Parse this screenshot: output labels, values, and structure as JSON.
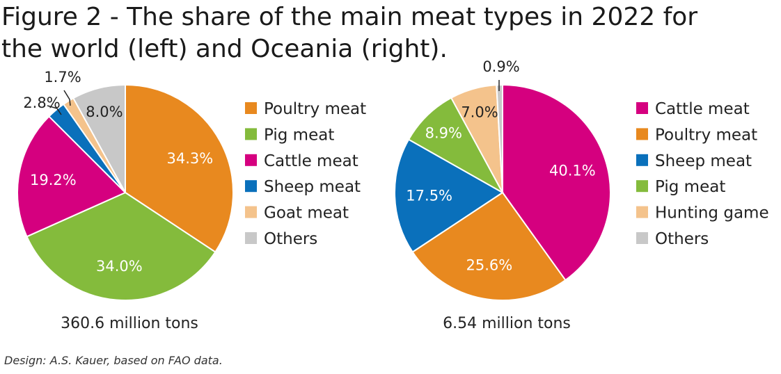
{
  "title_lines": [
    "Figure 2 - The share of the main meat types in 2022 for",
    "the world (left) and Oceania (right)."
  ],
  "credit": "Design: A.S. Kauer, based on FAO data.",
  "colors": {
    "poultry": "#e8891f",
    "pig": "#84bb3c",
    "cattle": "#d5007f",
    "sheep": "#0a70bb",
    "goat": "#f4c38c",
    "hunting": "#f4c38c",
    "others": "#c8c8c8"
  },
  "chart_data": [
    {
      "type": "pie",
      "title": "",
      "total_label": "360.6 million tons",
      "slices": [
        {
          "name": "Poultry meat",
          "value": 34.3,
          "label": "34.3%",
          "color": "#e8891f"
        },
        {
          "name": "Pig meat",
          "value": 34.0,
          "label": "34.0%",
          "color": "#84bb3c"
        },
        {
          "name": "Cattle meat",
          "value": 19.2,
          "label": "19.2%",
          "color": "#d5007f"
        },
        {
          "name": "Sheep meat",
          "value": 2.8,
          "label": "2.8%",
          "color": "#0a70bb"
        },
        {
          "name": "Goat meat",
          "value": 1.7,
          "label": "1.7%",
          "color": "#f4c38c"
        },
        {
          "name": "Others",
          "value": 8.0,
          "label": "8.0%",
          "color": "#c8c8c8"
        }
      ],
      "legend": [
        "Poultry meat",
        "Pig meat",
        "Cattle meat",
        "Sheep meat",
        "Goat meat",
        "Others"
      ],
      "legend_colors": [
        "#e8891f",
        "#84bb3c",
        "#d5007f",
        "#0a70bb",
        "#f4c38c",
        "#c8c8c8"
      ]
    },
    {
      "type": "pie",
      "title": "",
      "total_label": "6.54 million tons",
      "slices": [
        {
          "name": "Cattle meat",
          "value": 40.1,
          "label": "40.1%",
          "color": "#d5007f"
        },
        {
          "name": "Poultry meat",
          "value": 25.6,
          "label": "25.6%",
          "color": "#e8891f"
        },
        {
          "name": "Sheep meat",
          "value": 17.5,
          "label": "17.5%",
          "color": "#0a70bb"
        },
        {
          "name": "Pig meat",
          "value": 8.9,
          "label": "8.9%",
          "color": "#84bb3c"
        },
        {
          "name": "Hunting game",
          "value": 7.0,
          "label": "7.0%",
          "color": "#f4c38c"
        },
        {
          "name": "Others",
          "value": 0.9,
          "label": "0.9%",
          "color": "#c8c8c8"
        }
      ],
      "legend": [
        "Cattle meat",
        "Poultry meat",
        "Sheep meat",
        "Pig meat",
        "Hunting game",
        "Others"
      ],
      "legend_colors": [
        "#d5007f",
        "#e8891f",
        "#0a70bb",
        "#84bb3c",
        "#f4c38c",
        "#c8c8c8"
      ]
    }
  ]
}
